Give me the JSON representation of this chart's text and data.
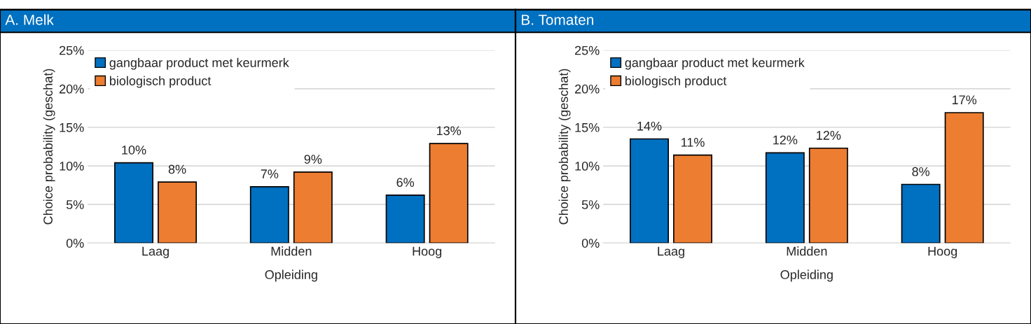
{
  "chart_data": [
    {
      "type": "bar",
      "title": "A. Melk",
      "xlabel": "Opleiding",
      "ylabel": "Choice probability (geschat)",
      "categories": [
        "Laag",
        "Midden",
        "Hoog"
      ],
      "series": [
        {
          "name": "gangbaar product met keurmerk",
          "color": "#0070c0",
          "values": [
            10.4,
            7.3,
            6.2
          ],
          "value_labels": [
            "10%",
            "7%",
            "6%"
          ]
        },
        {
          "name": "biologisch product",
          "color": "#ed7d31",
          "values": [
            7.9,
            9.2,
            12.9
          ],
          "value_labels": [
            "8%",
            "9%",
            "13%"
          ]
        }
      ],
      "ylim": [
        0,
        25
      ],
      "yticks": [
        {
          "value": 0,
          "label": "0%"
        },
        {
          "value": 5,
          "label": "5%"
        },
        {
          "value": 10,
          "label": "10%"
        },
        {
          "value": 15,
          "label": "15%"
        },
        {
          "value": 20,
          "label": "20%"
        },
        {
          "value": 25,
          "label": "25%"
        }
      ],
      "grid": "y",
      "legend": "top left"
    },
    {
      "type": "bar",
      "title": "B. Tomaten",
      "xlabel": "Opleiding",
      "ylabel": "Choice probability (geschat)",
      "categories": [
        "Laag",
        "Midden",
        "Hoog"
      ],
      "series": [
        {
          "name": "gangbaar product met keurmerk",
          "color": "#0070c0",
          "values": [
            13.5,
            11.7,
            7.6
          ],
          "value_labels": [
            "14%",
            "12%",
            "8%"
          ]
        },
        {
          "name": "biologisch product",
          "color": "#ed7d31",
          "values": [
            11.4,
            12.3,
            16.9
          ],
          "value_labels": [
            "11%",
            "12%",
            "17%"
          ]
        }
      ],
      "ylim": [
        0,
        25
      ],
      "yticks": [
        {
          "value": 0,
          "label": "0%"
        },
        {
          "value": 5,
          "label": "5%"
        },
        {
          "value": 10,
          "label": "10%"
        },
        {
          "value": 15,
          "label": "15%"
        },
        {
          "value": 20,
          "label": "20%"
        },
        {
          "value": 25,
          "label": "25%"
        }
      ],
      "grid": "y",
      "legend": "top left"
    }
  ]
}
